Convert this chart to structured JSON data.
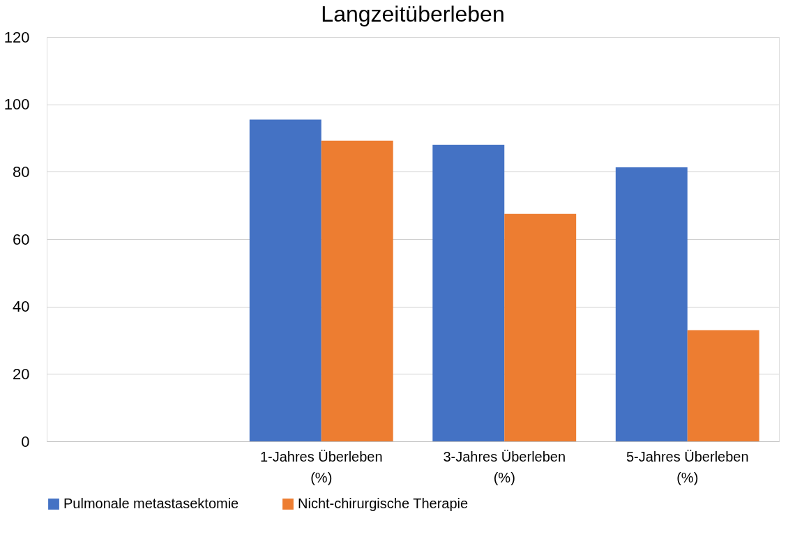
{
  "chart_data": {
    "type": "bar",
    "title": "Langzeitüberleben",
    "categories": [
      null,
      "1-Jahres Überleben (%)",
      "3-Jahres Überleben (%)",
      "5-Jahres Überleben (%)"
    ],
    "series": [
      {
        "name": "Pulmonale metastasektomie",
        "color": "#4472c4",
        "values": [
          null,
          95.5,
          88,
          81.3
        ]
      },
      {
        "name": "Nicht-chirurgische Therapie",
        "color": "#ed7d31",
        "values": [
          null,
          89.2,
          67.5,
          33
        ]
      }
    ],
    "ylim": [
      0,
      120
    ],
    "yticks": [
      0,
      20,
      40,
      60,
      80,
      100,
      120
    ],
    "grid": "y",
    "legend": "bottom"
  }
}
